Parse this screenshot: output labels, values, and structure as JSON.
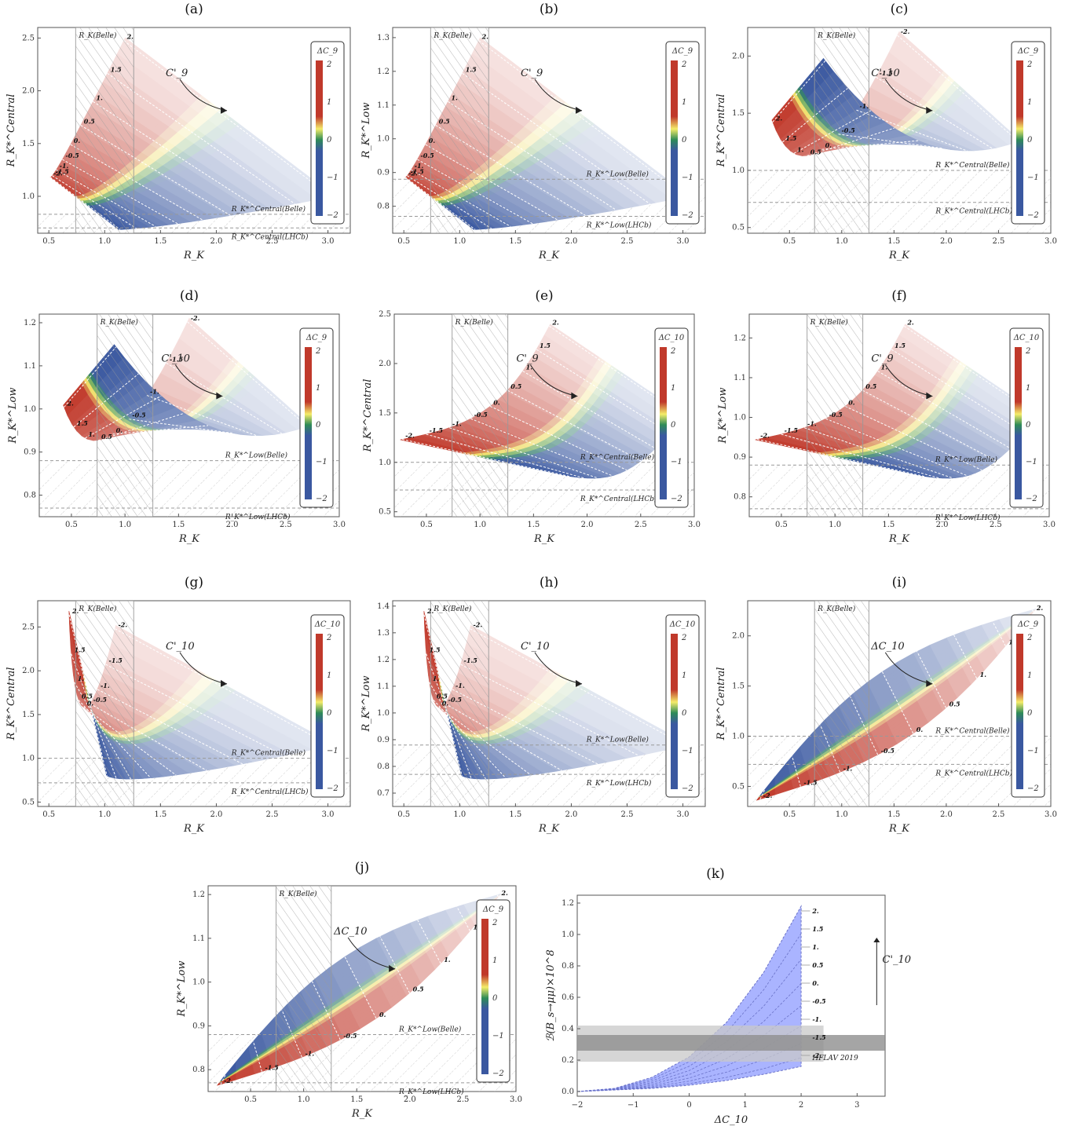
{
  "colors": {
    "red": "#c0392b",
    "yellow": "#f4ec6a",
    "green": "#2e8b57",
    "blue": "#3a58a0",
    "bplot": "#aab4ff",
    "hflav_band": "#c8c8c8",
    "hflav_center": "#8e8e8e"
  },
  "chart_data": [
    {
      "id": "a",
      "type": "contour",
      "panel_label": "(a)",
      "xlabel": "R_K",
      "ylabel": "R_K*^Central",
      "xlim": [
        0.4,
        3.2
      ],
      "ylim": [
        0.65,
        2.6
      ],
      "xticks": [
        "0.5",
        "1.0",
        "1.5",
        "2.0",
        "2.5",
        "3.0"
      ],
      "yticks": [
        "1.0",
        "1.5",
        "2.0",
        "2.5"
      ],
      "region_label": "R_K(Belle)",
      "hlines": [
        {
          "label": "R_K*^Central(Belle)",
          "y": 0.83
        },
        {
          "label": "R_K*^Central(LHCb)",
          "y": 0.7
        }
      ],
      "colorbar": {
        "title": "ΔC_9",
        "ticks": [
          "2",
          "1",
          "0",
          "−1",
          "−2"
        ]
      },
      "arrow_label": "C'_9",
      "contour_values": [
        "-2.",
        "-1.5",
        "-1.",
        "-0.5",
        "0.",
        "0.5",
        "1.",
        "1.5",
        "2."
      ],
      "shape": "a"
    },
    {
      "id": "b",
      "type": "contour",
      "panel_label": "(b)",
      "xlabel": "R_K",
      "ylabel": "R_K*^Low",
      "xlim": [
        0.4,
        3.2
      ],
      "ylim": [
        0.72,
        1.33
      ],
      "xticks": [
        "0.5",
        "1.0",
        "1.5",
        "2.0",
        "2.5",
        "3.0"
      ],
      "yticks": [
        "0.8",
        "0.9",
        "1.0",
        "1.1",
        "1.2",
        "1.3"
      ],
      "region_label": "R_K(Belle)",
      "hlines": [
        {
          "label": "R_K*^Low(Belle)",
          "y": 0.88
        },
        {
          "label": "R_K*^Low(LHCb)",
          "y": 0.77
        }
      ],
      "colorbar": {
        "title": "ΔC_9",
        "ticks": [
          "2",
          "1",
          "0",
          "−1",
          "−2"
        ]
      },
      "arrow_label": "C'_9",
      "contour_values": [
        "-2.",
        "-1.5",
        "-1.",
        "-0.5",
        "0.",
        "0.5",
        "1.",
        "1.5",
        "2."
      ],
      "shape": "a"
    },
    {
      "id": "c",
      "type": "contour",
      "panel_label": "(c)",
      "xlabel": "R_K",
      "ylabel": "R_K*^Central",
      "xlim": [
        0.1,
        3.0
      ],
      "ylim": [
        0.45,
        2.25
      ],
      "xticks": [
        "0.5",
        "1.0",
        "1.5",
        "2.0",
        "2.5",
        "3.0"
      ],
      "yticks": [
        "0.5",
        "1.0",
        "1.5",
        "2.0"
      ],
      "region_label": "R_K(Belle)",
      "hlines": [
        {
          "label": "R_K*^Central(Belle)",
          "y": 1.0
        },
        {
          "label": "R_K*^Central(LHCb)",
          "y": 0.72
        }
      ],
      "colorbar": {
        "title": "ΔC_9",
        "ticks": [
          "2",
          "1",
          "0",
          "−1",
          "−2"
        ]
      },
      "arrow_label": "C'_10",
      "contour_values": [
        "2.",
        "1.5",
        "1.",
        "0.5",
        "0.",
        "-0.5",
        "-1.",
        "-1.5",
        "-2."
      ],
      "shape": "c"
    },
    {
      "id": "d",
      "type": "contour",
      "panel_label": "(d)",
      "xlabel": "R_K",
      "ylabel": "R_K*^Low",
      "xlim": [
        0.2,
        3.0
      ],
      "ylim": [
        0.75,
        1.22
      ],
      "xticks": [
        "0.5",
        "1.0",
        "1.5",
        "2.0",
        "2.5",
        "3.0"
      ],
      "yticks": [
        "0.8",
        "0.9",
        "1.0",
        "1.1",
        "1.2"
      ],
      "region_label": "R_K(Belle)",
      "hlines": [
        {
          "label": "R_K*^Low(Belle)",
          "y": 0.88
        },
        {
          "label": "R_K*^Low(LHCb)",
          "y": 0.77
        }
      ],
      "colorbar": {
        "title": "ΔC_9",
        "ticks": [
          "2",
          "1",
          "0",
          "−1",
          "−2"
        ]
      },
      "arrow_label": "C'_10",
      "contour_values": [
        "2.",
        "1.5",
        "1.",
        "0.5",
        "0.",
        "-0.5",
        "-1.",
        "-1.5",
        "-2."
      ],
      "shape": "c"
    },
    {
      "id": "e",
      "type": "contour",
      "panel_label": "(e)",
      "xlabel": "R_K",
      "ylabel": "R_K*^Central",
      "xlim": [
        0.2,
        3.0
      ],
      "ylim": [
        0.45,
        2.5
      ],
      "xticks": [
        "0.5",
        "1.0",
        "1.5",
        "2.0",
        "2.5",
        "3.0"
      ],
      "yticks": [
        "0.5",
        "1.0",
        "1.5",
        "2.0",
        "2.5"
      ],
      "region_label": "R_K(Belle)",
      "hlines": [
        {
          "label": "R_K*^Central(Belle)",
          "y": 1.0
        },
        {
          "label": "R_K*^Central(LHCb)",
          "y": 0.72
        }
      ],
      "colorbar": {
        "title": "ΔC_10",
        "ticks": [
          "2",
          "1",
          "0",
          "−1",
          "−2"
        ]
      },
      "arrow_label": "C'_9",
      "contour_values": [
        "-2.",
        "-1.5",
        "-1.",
        "-0.5",
        "0.",
        "0.5",
        "1.",
        "1.5",
        "2."
      ],
      "shape": "e"
    },
    {
      "id": "f",
      "type": "contour",
      "panel_label": "(f)",
      "xlabel": "R_K",
      "ylabel": "R_K*^Low",
      "xlim": [
        0.2,
        3.0
      ],
      "ylim": [
        0.75,
        1.26
      ],
      "xticks": [
        "0.5",
        "1.0",
        "1.5",
        "2.0",
        "2.5",
        "3.0"
      ],
      "yticks": [
        "0.8",
        "0.9",
        "1.0",
        "1.1",
        "1.2"
      ],
      "region_label": "R_K(Belle)",
      "hlines": [
        {
          "label": "R_K*^Low(Belle)",
          "y": 0.88
        },
        {
          "label": "R_K*^Low(LHCb)",
          "y": 0.77
        }
      ],
      "colorbar": {
        "title": "ΔC_10",
        "ticks": [
          "2",
          "1",
          "0",
          "−1",
          "−2"
        ]
      },
      "arrow_label": "C'_9",
      "contour_values": [
        "-2.",
        "-1.5",
        "-1.",
        "-0.5",
        "0.",
        "0.5",
        "1.",
        "1.5",
        "2."
      ],
      "shape": "e"
    },
    {
      "id": "g",
      "type": "contour",
      "panel_label": "(g)",
      "xlabel": "R_K",
      "ylabel": "R_K*^Central",
      "xlim": [
        0.4,
        3.2
      ],
      "ylim": [
        0.45,
        2.8
      ],
      "xticks": [
        "0.5",
        "1.0",
        "1.5",
        "2.0",
        "2.5",
        "3.0"
      ],
      "yticks": [
        "0.5",
        "1.0",
        "1.5",
        "2.0",
        "2.5"
      ],
      "region_label": "R_K(Belle)",
      "hlines": [
        {
          "label": "R_K*^Central(Belle)",
          "y": 1.0
        },
        {
          "label": "R_K*^Central(LHCb)",
          "y": 0.72
        }
      ],
      "colorbar": {
        "title": "ΔC_10",
        "ticks": [
          "2",
          "1",
          "0",
          "−1",
          "−2"
        ]
      },
      "arrow_label": "C'_10",
      "contour_values": [
        "2.",
        "1.5",
        "1.",
        "0.5",
        "0.",
        "-0.5",
        "-1.",
        "-1.5",
        "-2."
      ],
      "shape": "g"
    },
    {
      "id": "h",
      "type": "contour",
      "panel_label": "(h)",
      "xlabel": "R_K",
      "ylabel": "R_K*^Low",
      "xlim": [
        0.4,
        3.2
      ],
      "ylim": [
        0.65,
        1.42
      ],
      "xticks": [
        "0.5",
        "1.0",
        "1.5",
        "2.0",
        "2.5",
        "3.0"
      ],
      "yticks": [
        "0.7",
        "0.8",
        "0.9",
        "1.0",
        "1.1",
        "1.2",
        "1.3",
        "1.4"
      ],
      "region_label": "R_K(Belle)",
      "hlines": [
        {
          "label": "R_K*^Low(Belle)",
          "y": 0.88
        },
        {
          "label": "R_K*^Low(LHCb)",
          "y": 0.77
        }
      ],
      "colorbar": {
        "title": "ΔC_10",
        "ticks": [
          "2",
          "1",
          "0",
          "−1",
          "−2"
        ]
      },
      "arrow_label": "C'_10",
      "contour_values": [
        "2.",
        "1.5",
        "1.",
        "0.5",
        "0.",
        "-0.5",
        "-1.",
        "-1.5",
        "-2."
      ],
      "shape": "g"
    },
    {
      "id": "i",
      "type": "contour",
      "panel_label": "(i)",
      "xlabel": "R_K",
      "ylabel": "R_K*^Central",
      "xlim": [
        0.1,
        3.0
      ],
      "ylim": [
        0.3,
        2.35
      ],
      "xticks": [
        "0.5",
        "1.0",
        "1.5",
        "2.0",
        "2.5",
        "3.0"
      ],
      "yticks": [
        "0.5",
        "1.0",
        "1.5",
        "2.0"
      ],
      "region_label": "R_K(Belle)",
      "hlines": [
        {
          "label": "R_K*^Central(Belle)",
          "y": 1.0
        },
        {
          "label": "R_K*^Central(LHCb)",
          "y": 0.72
        }
      ],
      "colorbar": {
        "title": "ΔC_9",
        "ticks": [
          "2",
          "1",
          "0",
          "−1",
          "−2"
        ]
      },
      "arrow_label": "ΔC_10",
      "contour_values": [
        "-2.",
        "-1.5",
        "-1.",
        "-0.5",
        "0.",
        "0.5",
        "1.",
        "1.5",
        "2."
      ],
      "shape": "i"
    },
    {
      "id": "j",
      "type": "contour",
      "panel_label": "(j)",
      "xlabel": "R_K",
      "ylabel": "R_K*^Low",
      "xlim": [
        0.1,
        3.0
      ],
      "ylim": [
        0.75,
        1.22
      ],
      "xticks": [
        "0.5",
        "1.0",
        "1.5",
        "2.0",
        "2.5",
        "3.0"
      ],
      "yticks": [
        "0.8",
        "0.9",
        "1.0",
        "1.1",
        "1.2"
      ],
      "region_label": "R_K(Belle)",
      "hlines": [
        {
          "label": "R_K*^Low(Belle)",
          "y": 0.88
        },
        {
          "label": "R_K*^Low(LHCb)",
          "y": 0.77
        }
      ],
      "colorbar": {
        "title": "ΔC_9",
        "ticks": [
          "2",
          "1",
          "0",
          "−1",
          "−2"
        ]
      },
      "arrow_label": "ΔC_10",
      "contour_values": [
        "-2.",
        "-1.5",
        "-1.",
        "-0.5",
        "0.",
        "0.5",
        "1.",
        "1.5",
        "2."
      ],
      "shape": "i"
    },
    {
      "id": "k",
      "type": "area",
      "panel_label": "(k)",
      "xlabel": "ΔC_10",
      "ylabel": "ℬ(B_s→μμ)×10^8",
      "xlim": [
        -2,
        3.5
      ],
      "ylim": [
        -0.03,
        1.25
      ],
      "xticks": [
        "−2",
        "−1",
        "0",
        "1",
        "2",
        "3"
      ],
      "yticks": [
        "0.0",
        "0.2",
        "0.4",
        "0.6",
        "0.8",
        "1.0",
        "1.2"
      ],
      "band_label": "HFLAV 2019",
      "band": [
        0.19,
        0.42
      ],
      "band_center": [
        0.26,
        0.36
      ],
      "series": [
        {
          "name": "2.",
          "values": [
            0.0,
            0.02,
            0.09,
            0.22,
            0.44,
            0.76,
            1.18
          ]
        },
        {
          "name": "-2.",
          "values": [
            0.0,
            0.01,
            0.02,
            0.04,
            0.07,
            0.11,
            0.16
          ]
        }
      ],
      "x": [
        -2,
        -1.333,
        -0.667,
        0,
        0.667,
        1.333,
        2
      ],
      "contour_values": [
        "2.",
        "1.5",
        "1.",
        "0.5",
        "0.",
        "-0.5",
        "-1.",
        "-1.5",
        "-2."
      ],
      "arrow_label": "C'_10"
    }
  ]
}
